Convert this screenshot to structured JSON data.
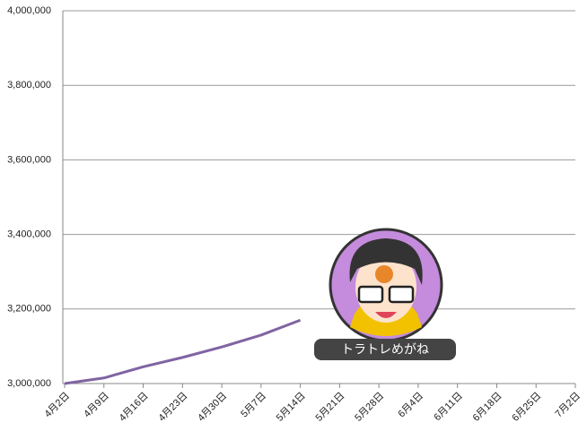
{
  "chart_data": {
    "type": "line",
    "categories": [
      "4月2日",
      "4月9日",
      "4月16日",
      "4月23日",
      "4月30日",
      "5月7日",
      "5月14日",
      "5月21日",
      "5月28日",
      "6月4日",
      "6月11日",
      "6月18日",
      "6月25日",
      "7月2日"
    ],
    "series": [
      {
        "color": "#8064a2",
        "values": [
          3000000,
          3015000,
          3045000,
          3070000,
          3098000,
          3130000,
          3170000,
          null,
          null,
          null,
          null,
          null,
          null,
          null
        ]
      }
    ],
    "ylim": [
      3000000,
      4000000
    ],
    "yticks": [
      {
        "value": 3000000,
        "label": "3,000,000"
      },
      {
        "value": 3200000,
        "label": "3,200,000"
      },
      {
        "value": 3400000,
        "label": "3,400,000"
      },
      {
        "value": 3600000,
        "label": "3,600,000"
      },
      {
        "value": 3800000,
        "label": "3,800,000"
      },
      {
        "value": 4000000,
        "label": "4,000,000"
      }
    ],
    "grid": true
  },
  "avatar": {
    "label": "トラトレめがね"
  }
}
